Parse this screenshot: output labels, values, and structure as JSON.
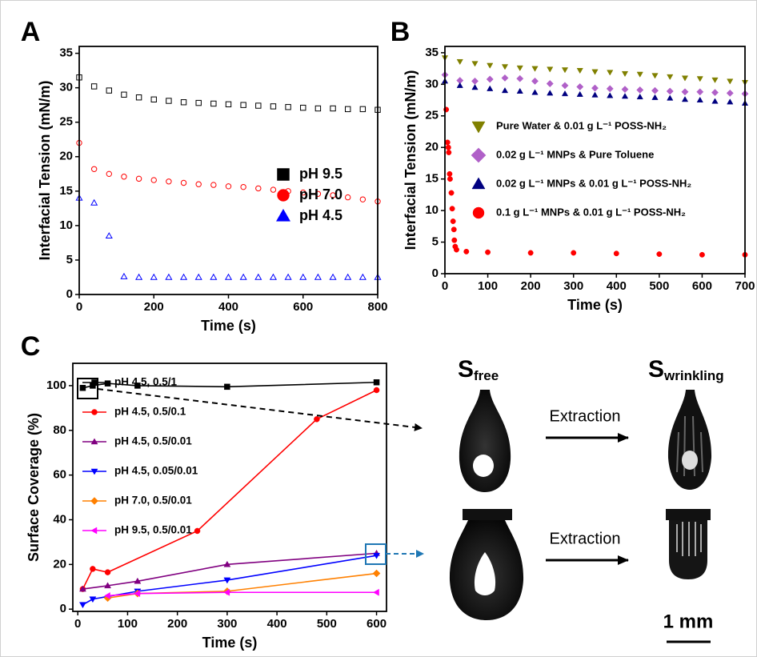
{
  "chart_data": [
    {
      "type": "scatter",
      "panel": "A",
      "x_label": "Time (s)",
      "y_label": "Interfacial Tension (mN/m)",
      "xlim": [
        0,
        800
      ],
      "xticks": [
        0,
        200,
        400,
        600,
        800
      ],
      "ylim": [
        0,
        36
      ],
      "yticks": [
        0,
        5,
        10,
        15,
        20,
        25,
        30,
        35
      ],
      "legend": "lower right",
      "hollow_markers": true,
      "x": [
        0,
        40,
        80,
        120,
        160,
        200,
        240,
        280,
        320,
        360,
        400,
        440,
        480,
        520,
        560,
        600,
        640,
        680,
        720,
        760,
        800
      ],
      "series": [
        {
          "name": "pH 9.5",
          "color": "#000000",
          "marker": "square",
          "values": [
            31.5,
            30.2,
            29.6,
            29.0,
            28.6,
            28.3,
            28.1,
            27.9,
            27.8,
            27.7,
            27.6,
            27.5,
            27.4,
            27.3,
            27.2,
            27.1,
            27.0,
            27.0,
            26.9,
            26.9,
            26.8
          ]
        },
        {
          "name": "pH 7.0",
          "color": "#ff0000",
          "marker": "circle",
          "values": [
            22.0,
            18.2,
            17.5,
            17.1,
            16.8,
            16.6,
            16.4,
            16.2,
            16.0,
            15.9,
            15.7,
            15.6,
            15.4,
            15.2,
            15.0,
            14.8,
            14.6,
            14.4,
            14.1,
            13.8,
            13.5
          ]
        },
        {
          "name": "pH 4.5",
          "color": "#0000ff",
          "marker": "triangle-up",
          "values": [
            14.0,
            13.3,
            8.5,
            2.6,
            2.5,
            2.5,
            2.5,
            2.5,
            2.5,
            2.5,
            2.5,
            2.5,
            2.5,
            2.5,
            2.5,
            2.5,
            2.5,
            2.5,
            2.5,
            2.5,
            2.5
          ]
        }
      ]
    },
    {
      "type": "scatter",
      "panel": "B",
      "x_label": "Time (s)",
      "y_label": "Interfacial Tension (mN/m)",
      "xlim": [
        0,
        700
      ],
      "xticks": [
        0,
        100,
        200,
        300,
        400,
        500,
        600,
        700
      ],
      "ylim": [
        0,
        36
      ],
      "yticks": [
        0,
        5,
        10,
        15,
        20,
        25,
        30,
        35
      ],
      "legend": "center left",
      "hollow_markers": false,
      "x": [
        0,
        35,
        70,
        105,
        140,
        175,
        210,
        245,
        280,
        315,
        350,
        385,
        420,
        455,
        490,
        525,
        560,
        595,
        630,
        665,
        700
      ],
      "series": [
        {
          "name": "Pure Water & 0.01 g L⁻¹ POSS-NH₂",
          "color": "#808000",
          "marker": "triangle-down",
          "values": [
            34.2,
            33.6,
            33.3,
            33.0,
            32.8,
            32.6,
            32.5,
            32.4,
            32.3,
            32.2,
            32.0,
            31.9,
            31.7,
            31.6,
            31.4,
            31.2,
            31.0,
            30.9,
            30.7,
            30.5,
            30.3
          ]
        },
        {
          "name": "0.02 g L⁻¹ MNPs & Pure Toluene",
          "color": "#b060c8",
          "marker": "diamond",
          "values": [
            31.5,
            30.6,
            30.5,
            30.8,
            31.0,
            30.9,
            30.5,
            30.1,
            29.8,
            29.6,
            29.4,
            29.3,
            29.2,
            29.1,
            29.0,
            28.9,
            28.8,
            28.8,
            28.7,
            28.6,
            28.5
          ]
        },
        {
          "name": "0.02 g L⁻¹ MNPs & 0.01 g L⁻¹ POSS-NH₂",
          "color": "#000080",
          "marker": "triangle-up",
          "values": [
            30.5,
            29.8,
            29.5,
            29.3,
            29.0,
            28.9,
            28.7,
            28.6,
            28.5,
            28.4,
            28.3,
            28.2,
            28.1,
            28.0,
            27.9,
            27.8,
            27.6,
            27.5,
            27.3,
            27.2,
            27.0
          ]
        },
        {
          "name": "0.1 g L⁻¹ MNPs & 0.01 g L⁻¹ POSS-NH₂",
          "color": "#ff0000",
          "marker": "circle",
          "x": [
            3,
            6,
            8,
            9,
            11,
            12,
            15,
            17,
            19,
            21,
            22,
            24,
            27,
            50,
            100,
            200,
            300,
            400,
            500,
            600,
            700
          ],
          "values": [
            26.0,
            20.8,
            20.0,
            19.2,
            15.8,
            15.0,
            12.8,
            10.3,
            8.3,
            7.0,
            5.3,
            4.3,
            3.8,
            3.5,
            3.4,
            3.3,
            3.3,
            3.2,
            3.1,
            3.0,
            3.0
          ]
        }
      ]
    },
    {
      "type": "line",
      "panel": "C",
      "x_label": "Time (s)",
      "y_label": "Surface Coverage (%)",
      "xlim": [
        -10,
        620
      ],
      "xticks": [
        0,
        100,
        200,
        300,
        400,
        500,
        600
      ],
      "ylim": [
        -1,
        110
      ],
      "yticks": [
        0,
        20,
        40,
        60,
        80,
        100
      ],
      "legend": "upper left",
      "series": [
        {
          "name": "pH 4.5, 0.5/1",
          "color": "#000000",
          "marker": "square",
          "x": [
            10,
            30,
            60,
            120,
            300,
            600
          ],
          "values": [
            99,
            100,
            101,
            100,
            99.5,
            101.5
          ]
        },
        {
          "name": "pH 4.5, 0.5/0.1",
          "color": "#ff0000",
          "marker": "circle",
          "x": [
            10,
            30,
            60,
            240,
            480,
            600
          ],
          "values": [
            9,
            18,
            16.5,
            35,
            85,
            98
          ]
        },
        {
          "name": "pH 4.5, 0.5/0.01",
          "color": "#800080",
          "marker": "triangle-up",
          "x": [
            10,
            60,
            120,
            300,
            600
          ],
          "values": [
            9,
            10.5,
            12.5,
            20,
            25
          ]
        },
        {
          "name": "pH 4.5, 0.05/0.01",
          "color": "#0000ff",
          "marker": "triangle-down",
          "x": [
            10,
            30,
            120,
            300,
            600
          ],
          "values": [
            2,
            4.5,
            8,
            13,
            24
          ]
        },
        {
          "name": "pH 7.0, 0.5/0.01",
          "color": "#ff8000",
          "marker": "diamond",
          "x": [
            60,
            120,
            300,
            600
          ],
          "values": [
            5,
            7,
            8,
            16
          ]
        },
        {
          "name": "pH 9.5, 0.5/0.01",
          "color": "#ff00ff",
          "marker": "triangle-left",
          "x": [
            60,
            120,
            300,
            600
          ],
          "values": [
            6,
            7,
            7.5,
            7.5
          ]
        }
      ]
    }
  ],
  "illustration": {
    "free_label": {
      "main": "S",
      "sub": "free"
    },
    "wrinkling_label": {
      "main": "S",
      "sub": "wrinkling"
    },
    "extraction": [
      "Extraction",
      "Extraction"
    ],
    "scale_bar": "1 mm"
  }
}
